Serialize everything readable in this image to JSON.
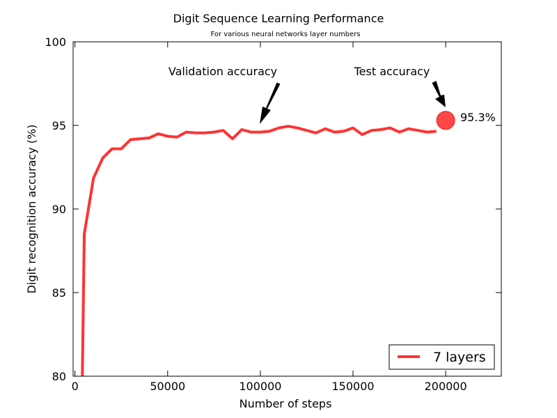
{
  "chart_data": {
    "type": "line",
    "title": "Digit Sequence Learning Performance",
    "subtitle": "For various neural networks layer numbers",
    "xlabel": "Number of steps",
    "ylabel": "Digit recognition accuracy (%)",
    "xlim": [
      -1000,
      230000
    ],
    "ylim": [
      80,
      100
    ],
    "xticks": [
      0,
      50000,
      100000,
      150000,
      200000
    ],
    "yticks": [
      80,
      85,
      90,
      95,
      100
    ],
    "grid": false,
    "legend_position": "lower-right",
    "series": [
      {
        "name": "7 layers",
        "color": "#ff3333",
        "x": [
          4000,
          5000,
          10000,
          15000,
          20000,
          25000,
          30000,
          35000,
          40000,
          45000,
          50000,
          55000,
          60000,
          65000,
          70000,
          75000,
          80000,
          85000,
          90000,
          95000,
          100000,
          105000,
          110000,
          115000,
          120000,
          125000,
          130000,
          135000,
          140000,
          145000,
          150000,
          155000,
          160000,
          165000,
          170000,
          175000,
          180000,
          185000,
          190000,
          195000
        ],
        "y": [
          80.0,
          88.5,
          91.85,
          93.05,
          93.6,
          93.6,
          94.15,
          94.2,
          94.25,
          94.5,
          94.35,
          94.3,
          94.6,
          94.55,
          94.55,
          94.6,
          94.7,
          94.2,
          94.75,
          94.6,
          94.6,
          94.65,
          94.85,
          94.95,
          94.85,
          94.7,
          94.55,
          94.8,
          94.6,
          94.65,
          94.85,
          94.45,
          94.7,
          94.75,
          94.85,
          94.6,
          94.8,
          94.7,
          94.6,
          94.65
        ]
      }
    ],
    "test_point": {
      "x": 200000,
      "y": 95.3,
      "label": "95.3%",
      "color": "#ff3333"
    },
    "annotations": [
      {
        "text": "Validation accuracy",
        "arrow_to": {
          "x": 100000,
          "y": 95.1
        }
      },
      {
        "text": "Test accuracy",
        "arrow_to": {
          "x": 200000,
          "y": 96.0
        }
      }
    ],
    "tick_labels": {
      "x": [
        "0",
        "50000",
        "100000",
        "150000",
        "200000"
      ],
      "y": [
        "80",
        "85",
        "90",
        "95",
        "100"
      ]
    }
  }
}
